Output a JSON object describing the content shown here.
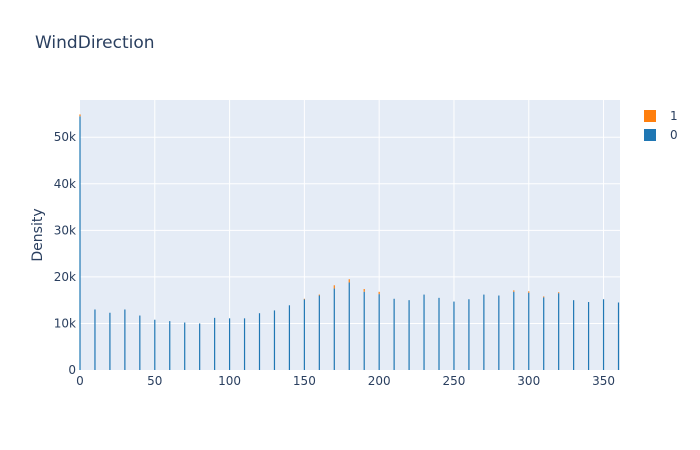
{
  "chart_data": {
    "type": "bar",
    "title": "WindDirection",
    "xlabel": "",
    "ylabel": "Density",
    "xlim": [
      0,
      361
    ],
    "ylim": [
      0,
      58000
    ],
    "xticks": [
      0,
      50,
      100,
      150,
      200,
      250,
      300,
      350
    ],
    "xtick_labels": [
      "0",
      "50",
      "100",
      "150",
      "200",
      "250",
      "300",
      "350"
    ],
    "yticks": [
      0,
      10000,
      20000,
      30000,
      40000,
      50000
    ],
    "ytick_labels": [
      "0",
      "10k",
      "20k",
      "30k",
      "40k",
      "50k"
    ],
    "barmode": "stack",
    "grid": true,
    "legend": "top-right",
    "series": [
      {
        "name": "0",
        "color": "#1f77b4",
        "points": [
          [
            0,
            54500
          ],
          [
            10,
            13000
          ],
          [
            20,
            12300
          ],
          [
            30,
            13000
          ],
          [
            40,
            11700
          ],
          [
            50,
            10800
          ],
          [
            60,
            10500
          ],
          [
            70,
            10200
          ],
          [
            80,
            10000
          ],
          [
            90,
            11200
          ],
          [
            100,
            11100
          ],
          [
            110,
            11100
          ],
          [
            120,
            12200
          ],
          [
            130,
            12800
          ],
          [
            140,
            13900
          ],
          [
            150,
            15200
          ],
          [
            160,
            16000
          ],
          [
            170,
            17500
          ],
          [
            180,
            18800
          ],
          [
            190,
            16800
          ],
          [
            200,
            16300
          ],
          [
            210,
            15300
          ],
          [
            220,
            15000
          ],
          [
            230,
            16200
          ],
          [
            240,
            15500
          ],
          [
            250,
            14700
          ],
          [
            260,
            15200
          ],
          [
            270,
            16200
          ],
          [
            280,
            16000
          ],
          [
            290,
            16800
          ],
          [
            300,
            16600
          ],
          [
            310,
            15600
          ],
          [
            320,
            16500
          ],
          [
            330,
            15000
          ],
          [
            340,
            14600
          ],
          [
            350,
            15200
          ],
          [
            360,
            14500
          ]
        ]
      },
      {
        "name": "1",
        "color": "#ff7f0e",
        "points": [
          [
            0,
            400
          ],
          [
            150,
            100
          ],
          [
            160,
            200
          ],
          [
            170,
            700
          ],
          [
            180,
            700
          ],
          [
            190,
            600
          ],
          [
            200,
            500
          ],
          [
            290,
            300
          ],
          [
            300,
            300
          ],
          [
            310,
            200
          ],
          [
            320,
            200
          ]
        ]
      }
    ]
  }
}
